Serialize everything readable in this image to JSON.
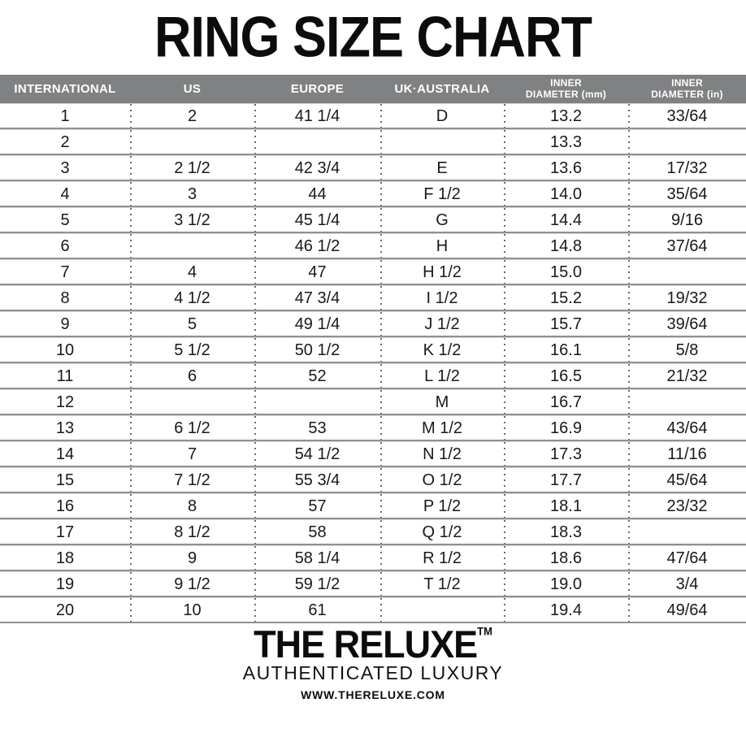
{
  "title": "RING SIZE CHART",
  "chart_data": {
    "type": "table",
    "title": "RING SIZE CHART",
    "columns": [
      {
        "line1": "INTERNATIONAL",
        "line2": ""
      },
      {
        "line1": "US",
        "line2": ""
      },
      {
        "line1": "EUROPE",
        "line2": ""
      },
      {
        "line1": "UK·AUSTRALIA",
        "line2": ""
      },
      {
        "line1": "INNER",
        "line2": "DIAMETER (mm)"
      },
      {
        "line1": "INNER",
        "line2": "DIAMETER (in)"
      }
    ],
    "rows": [
      [
        "1",
        "2",
        "41 1/4",
        "D",
        "13.2",
        "33/64"
      ],
      [
        "2",
        "",
        "",
        "",
        "13.3",
        ""
      ],
      [
        "3",
        "2 1/2",
        "42 3/4",
        "E",
        "13.6",
        "17/32"
      ],
      [
        "4",
        "3",
        "44",
        "F 1/2",
        "14.0",
        "35/64"
      ],
      [
        "5",
        "3 1/2",
        "45 1/4",
        "G",
        "14.4",
        "9/16"
      ],
      [
        "6",
        "",
        "46 1/2",
        "H",
        "14.8",
        "37/64"
      ],
      [
        "7",
        "4",
        "47",
        "H 1/2",
        "15.0",
        ""
      ],
      [
        "8",
        "4 1/2",
        "47 3/4",
        "I 1/2",
        "15.2",
        "19/32"
      ],
      [
        "9",
        "5",
        "49 1/4",
        "J 1/2",
        "15.7",
        "39/64"
      ],
      [
        "10",
        "5 1/2",
        "50 1/2",
        "K 1/2",
        "16.1",
        "5/8"
      ],
      [
        "11",
        "6",
        "52",
        "L 1/2",
        "16.5",
        "21/32"
      ],
      [
        "12",
        "",
        "",
        "M",
        "16.7",
        ""
      ],
      [
        "13",
        "6 1/2",
        "53",
        "M 1/2",
        "16.9",
        "43/64"
      ],
      [
        "14",
        "7",
        "54 1/2",
        "N 1/2",
        "17.3",
        "11/16"
      ],
      [
        "15",
        "7 1/2",
        "55 3/4",
        "O 1/2",
        "17.7",
        "45/64"
      ],
      [
        "16",
        "8",
        "57",
        "P 1/2",
        "18.1",
        "23/32"
      ],
      [
        "17",
        "8 1/2",
        "58",
        "Q 1/2",
        "18.3",
        ""
      ],
      [
        "18",
        "9",
        "58 1/4",
        "R 1/2",
        "18.6",
        "47/64"
      ],
      [
        "19",
        "9 1/2",
        "59 1/2",
        "T 1/2",
        "19.0",
        "3/4"
      ],
      [
        "20",
        "10",
        "61",
        "",
        "19.4",
        "49/64"
      ]
    ]
  },
  "footer": {
    "brand": "THE RELUXE",
    "trademark": "TM",
    "tagline": "AUTHENTICATED LUXURY",
    "website": "WWW.THERELUXE.COM"
  },
  "colors": {
    "header_bg": "#7f8183",
    "header_text": "#ffffff",
    "row_line": "#8f9193",
    "row_line_light": "#d4d6d6",
    "dot_line": "#6a6a6a",
    "text": "#191919"
  }
}
